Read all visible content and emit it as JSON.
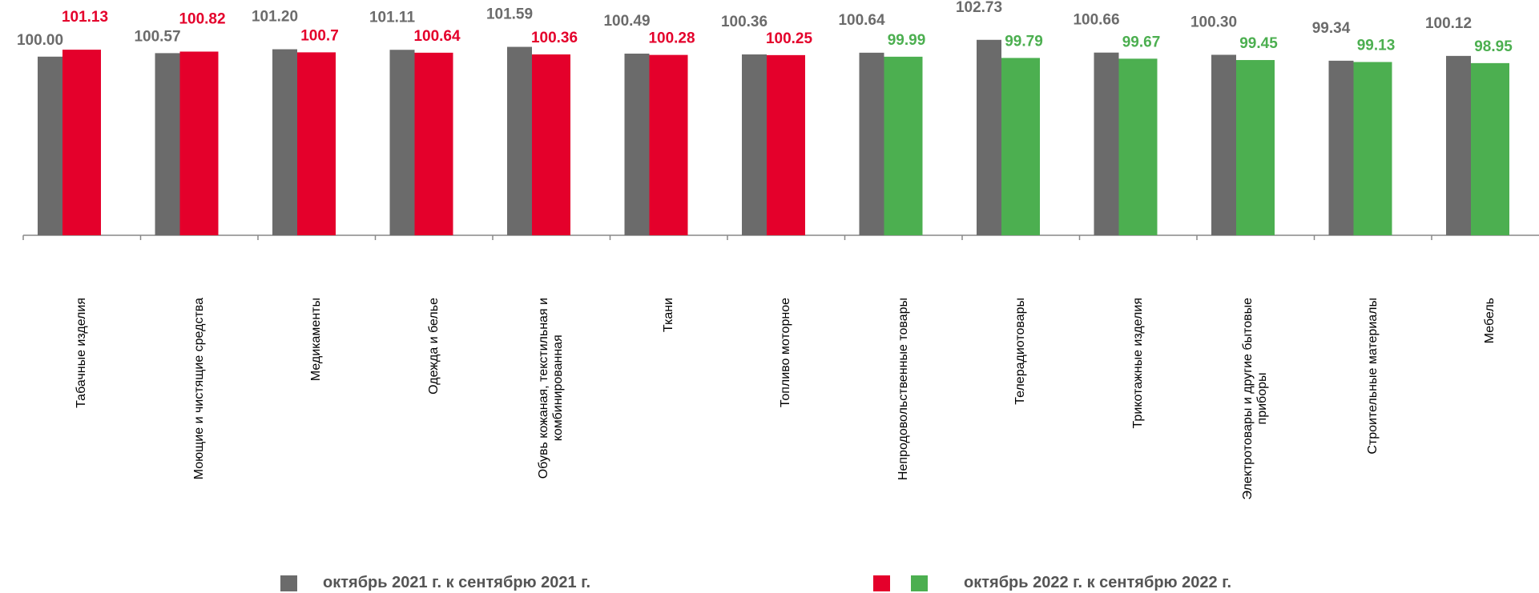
{
  "chart_data": {
    "type": "bar",
    "categories": [
      "Табачные изделия",
      "Моющие и чистящие средства",
      "Медикаменты",
      "Одежда и белье",
      "Обувь кожаная, текстильная и\nкомбинированная",
      "Ткани",
      "Топливо моторное",
      "Непродовольственные товары",
      "Телерадиотовары",
      "Трикотажные изделия",
      "Электротовары и другие бытовые\nприборы",
      "Строительные материалы",
      "Мебель"
    ],
    "series": [
      {
        "name": "октябрь 2021 г. к сентябрю 2021 г.",
        "color": "#6b6b6b",
        "values": [
          100.0,
          100.57,
          101.2,
          101.11,
          101.59,
          100.49,
          100.36,
          100.64,
          102.73,
          100.66,
          100.3,
          99.34,
          100.12
        ],
        "value_labels": [
          "100.00",
          "100.57",
          "101.20",
          "101.11",
          "101.59",
          "100.49",
          "100.36",
          "100.64",
          "102.73",
          "100.66",
          "100.30",
          "99.34",
          "100.12"
        ]
      },
      {
        "name": "октябрь 2022 г. к сентябрю 2022 г.",
        "colors": [
          "#e4002b",
          "#4caf50"
        ],
        "values": [
          101.13,
          100.82,
          100.7,
          100.64,
          100.36,
          100.28,
          100.25,
          99.99,
          99.79,
          99.67,
          99.45,
          99.13,
          98.95
        ]
      }
    ],
    "ylim": [
      71,
      104
    ]
  }
}
